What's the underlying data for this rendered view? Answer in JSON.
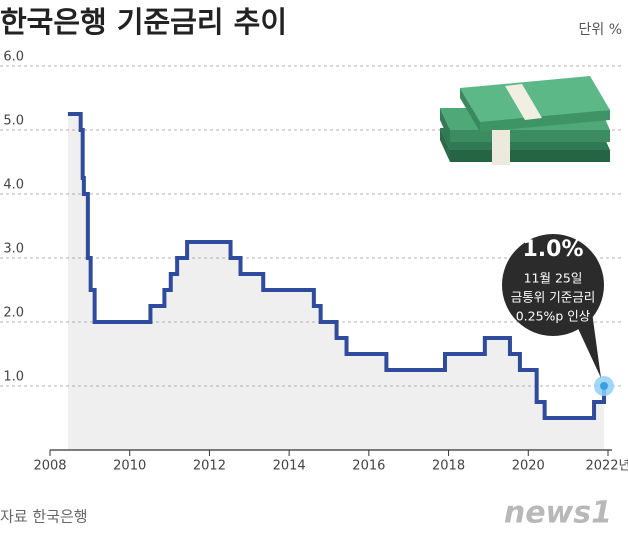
{
  "chart_data": {
    "type": "line",
    "step": "post",
    "title": "한국은행 기준금리 추이",
    "unit": "단위 %",
    "source": "자료 한국은행",
    "logo": "news1",
    "series": [
      {
        "name": "기준금리",
        "color": "#2f4b9c",
        "x": [
          2008.45,
          2008.77,
          2008.82,
          2008.85,
          2008.95,
          2009.02,
          2009.12,
          2010.52,
          2010.87,
          2011.03,
          2011.19,
          2011.44,
          2012.53,
          2012.78,
          2013.35,
          2014.62,
          2014.79,
          2015.19,
          2015.44,
          2016.44,
          2017.91,
          2018.91,
          2019.54,
          2019.79,
          2020.21,
          2020.41,
          2021.65,
          2021.9
        ],
        "values": [
          5.25,
          5.0,
          4.25,
          4.0,
          3.0,
          2.5,
          2.0,
          2.25,
          2.5,
          2.75,
          3.0,
          3.25,
          3.0,
          2.75,
          2.5,
          2.25,
          2.0,
          1.75,
          1.5,
          1.25,
          1.5,
          1.75,
          1.5,
          1.25,
          0.75,
          0.5,
          0.75,
          1.0
        ]
      }
    ],
    "area_color": "#efeff0",
    "grid": true,
    "xlim": [
      2008,
      2022
    ],
    "xticks": [
      2008,
      2010,
      2012,
      2014,
      2016,
      2018,
      2020,
      {
        "value": 2022,
        "label": "2022년"
      }
    ],
    "ylim": [
      0,
      6
    ],
    "yticks": [
      {
        "value": 1,
        "label": "1.0"
      },
      {
        "value": 2,
        "label": "2.0"
      },
      {
        "value": 3,
        "label": "3.0"
      },
      {
        "value": 4,
        "label": "4.0"
      },
      {
        "value": 5,
        "label": "5.0"
      },
      {
        "value": 6,
        "label": "6.0"
      }
    ],
    "annotation": {
      "value": 1.0,
      "value_label": "1.0%",
      "lines": [
        "11월 25일",
        "금통위 기준금리",
        "0.25%p 인상"
      ]
    }
  }
}
